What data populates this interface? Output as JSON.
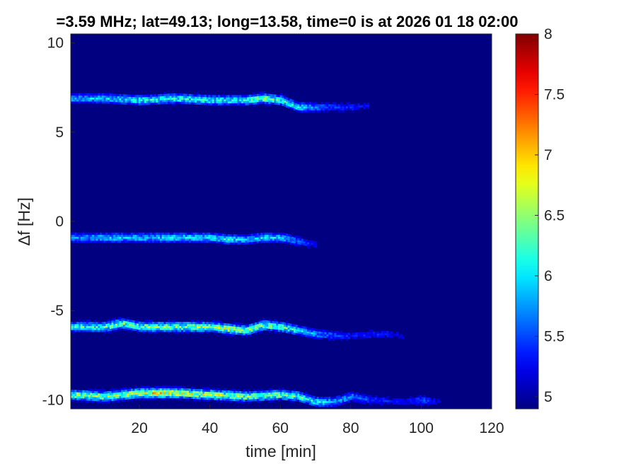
{
  "chart_data": {
    "type": "heatmap",
    "title": "=3.59 MHz;  lat=49.13; long=13.58, time=0 is at 2026 01 18 02:00",
    "xlabel": "time [min]",
    "ylabel": "∆f [Hz]",
    "xlim": [
      0.5,
      120
    ],
    "ylim": [
      -10.5,
      10.5
    ],
    "xticks": [
      20,
      40,
      60,
      80,
      100,
      120
    ],
    "xtick_labels": [
      "20",
      "40",
      "60",
      "80",
      "100",
      "120"
    ],
    "yticks": [
      10,
      5,
      0,
      -5,
      -10
    ],
    "ytick_labels": [
      "10",
      "5",
      "0",
      "-5",
      "-10"
    ],
    "colorbar": {
      "colormap": "jet",
      "clim": [
        4.9,
        8
      ],
      "ticks": [
        8,
        7.5,
        7,
        6.5,
        6,
        5.5,
        5
      ],
      "tick_labels": [
        "8",
        "7.5",
        "7",
        "6.5",
        "6",
        "5.5",
        "5"
      ]
    },
    "background_level": 4.9,
    "series": [
      {
        "x": [
          0.5,
          10,
          20,
          30,
          40,
          50,
          55,
          60,
          65,
          70,
          75,
          80,
          85
        ],
        "y": [
          6.9,
          6.9,
          6.8,
          6.9,
          6.8,
          6.8,
          6.9,
          6.8,
          6.4,
          6.4,
          6.4,
          6.4,
          6.5
        ],
        "level": [
          5.9,
          6.0,
          6.2,
          6.3,
          6.2,
          6.3,
          6.6,
          6.4,
          6.1,
          5.7,
          5.5,
          5.4,
          5.3
        ]
      },
      {
        "x": [
          0.5,
          10,
          20,
          30,
          40,
          45,
          50,
          55,
          60,
          65,
          70
        ],
        "y": [
          -0.9,
          -0.9,
          -0.9,
          -0.9,
          -0.9,
          -1.0,
          -1.0,
          -0.9,
          -0.9,
          -1.1,
          -1.3
        ],
        "level": [
          5.8,
          6.0,
          6.0,
          6.1,
          6.1,
          6.2,
          5.9,
          6.1,
          6.0,
          5.6,
          5.3
        ]
      },
      {
        "x": [
          0.5,
          10,
          15,
          20,
          30,
          40,
          45,
          50,
          55,
          60,
          65,
          70,
          75,
          80,
          90,
          95
        ],
        "y": [
          -5.9,
          -5.9,
          -5.7,
          -5.9,
          -5.9,
          -5.9,
          -6.0,
          -6.1,
          -5.8,
          -5.9,
          -6.1,
          -6.3,
          -6.4,
          -6.4,
          -6.3,
          -6.4
        ],
        "level": [
          6.3,
          6.4,
          6.5,
          6.6,
          6.6,
          6.7,
          6.8,
          6.6,
          6.5,
          6.5,
          6.1,
          5.8,
          5.6,
          5.4,
          5.4,
          5.2
        ]
      },
      {
        "x": [
          0.5,
          10,
          20,
          25,
          30,
          40,
          50,
          60,
          65,
          70,
          75,
          80,
          85,
          95,
          100,
          105
        ],
        "y": [
          -9.7,
          -9.8,
          -9.6,
          -9.6,
          -9.6,
          -9.7,
          -9.8,
          -9.7,
          -9.8,
          -10.1,
          -10.1,
          -9.8,
          -10.0,
          -10.1,
          -10.0,
          -10.1
        ],
        "level": [
          6.7,
          6.7,
          6.9,
          7.2,
          6.9,
          6.8,
          6.6,
          6.6,
          6.4,
          6.2,
          5.9,
          5.8,
          5.5,
          5.3,
          5.6,
          5.2
        ]
      }
    ]
  }
}
